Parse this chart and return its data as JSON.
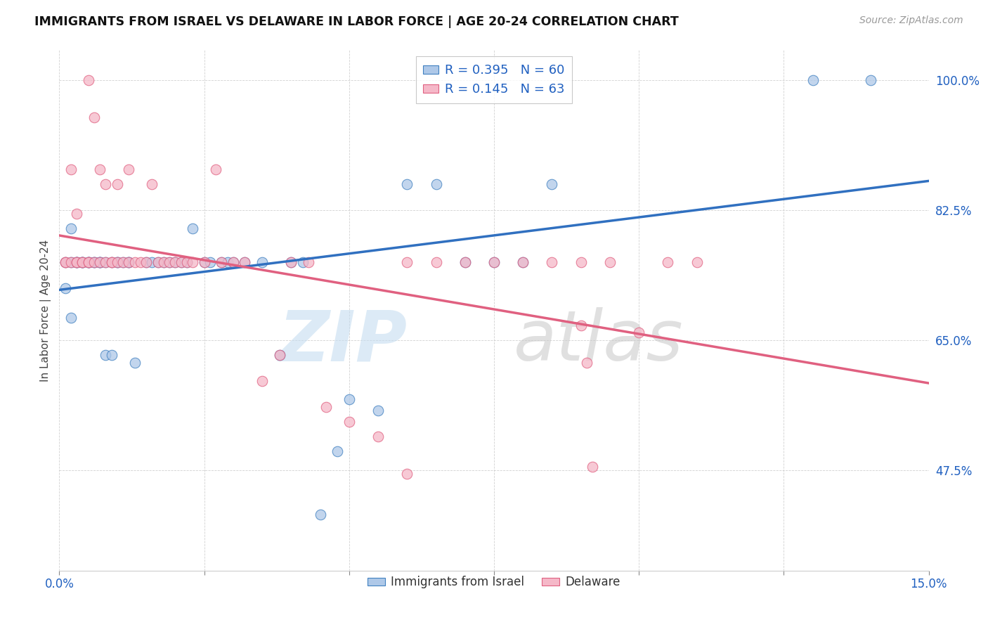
{
  "title": "IMMIGRANTS FROM ISRAEL VS DELAWARE IN LABOR FORCE | AGE 20-24 CORRELATION CHART",
  "source": "Source: ZipAtlas.com",
  "ylabel": "In Labor Force | Age 20-24",
  "xlim": [
    0.0,
    0.15
  ],
  "ylim": [
    0.34,
    1.04
  ],
  "ytick_labels": [
    "47.5%",
    "65.0%",
    "82.5%",
    "100.0%"
  ],
  "ytick_positions": [
    0.475,
    0.65,
    0.825,
    1.0
  ],
  "xtick_positions": [
    0.0,
    0.025,
    0.05,
    0.075,
    0.1,
    0.125,
    0.15
  ],
  "watermark_zip": "ZIP",
  "watermark_atlas": "atlas",
  "legend_r1": "R = 0.395",
  "legend_n1": "N = 60",
  "legend_r2": "R = 0.145",
  "legend_n2": "N = 63",
  "blue_fill": "#aec8e8",
  "blue_edge": "#4080c0",
  "pink_fill": "#f5b8c8",
  "pink_edge": "#e06080",
  "blue_line": "#3070c0",
  "pink_line": "#e06080",
  "blue_x": [
    0.001,
    0.001,
    0.002,
    0.002,
    0.002,
    0.003,
    0.003,
    0.003,
    0.004,
    0.004,
    0.004,
    0.005,
    0.005,
    0.005,
    0.006,
    0.006,
    0.007,
    0.007,
    0.007,
    0.008,
    0.008,
    0.009,
    0.009,
    0.01,
    0.01,
    0.011,
    0.012,
    0.012,
    0.013,
    0.015,
    0.016,
    0.017,
    0.018,
    0.019,
    0.02,
    0.021,
    0.022,
    0.023,
    0.025,
    0.026,
    0.028,
    0.029,
    0.03,
    0.032,
    0.035,
    0.038,
    0.04,
    0.042,
    0.045,
    0.048,
    0.05,
    0.055,
    0.06,
    0.065,
    0.07,
    0.075,
    0.08,
    0.085,
    0.13,
    0.14
  ],
  "blue_y": [
    0.755,
    0.72,
    0.755,
    0.8,
    0.68,
    0.755,
    0.755,
    0.755,
    0.755,
    0.755,
    0.755,
    0.755,
    0.755,
    0.755,
    0.755,
    0.755,
    0.755,
    0.755,
    0.755,
    0.63,
    0.755,
    0.755,
    0.63,
    0.755,
    0.755,
    0.755,
    0.755,
    0.755,
    0.62,
    0.755,
    0.755,
    0.755,
    0.755,
    0.755,
    0.755,
    0.755,
    0.755,
    0.8,
    0.755,
    0.755,
    0.755,
    0.755,
    0.755,
    0.755,
    0.755,
    0.63,
    0.755,
    0.755,
    0.415,
    0.5,
    0.57,
    0.555,
    0.86,
    0.86,
    0.755,
    0.755,
    0.755,
    0.86,
    1.0,
    1.0
  ],
  "pink_x": [
    0.001,
    0.001,
    0.002,
    0.002,
    0.003,
    0.003,
    0.003,
    0.004,
    0.004,
    0.005,
    0.005,
    0.005,
    0.006,
    0.006,
    0.007,
    0.007,
    0.008,
    0.008,
    0.009,
    0.009,
    0.01,
    0.01,
    0.011,
    0.012,
    0.012,
    0.013,
    0.014,
    0.015,
    0.016,
    0.017,
    0.018,
    0.019,
    0.02,
    0.021,
    0.022,
    0.023,
    0.025,
    0.027,
    0.028,
    0.03,
    0.032,
    0.035,
    0.038,
    0.04,
    0.043,
    0.046,
    0.05,
    0.055,
    0.06,
    0.065,
    0.07,
    0.075,
    0.08,
    0.085,
    0.09,
    0.095,
    0.1,
    0.105,
    0.11,
    0.09,
    0.091,
    0.092,
    0.06
  ],
  "pink_y": [
    0.755,
    0.755,
    0.755,
    0.88,
    0.755,
    0.755,
    0.82,
    0.755,
    0.755,
    1.0,
    0.755,
    0.755,
    0.755,
    0.95,
    0.755,
    0.88,
    0.755,
    0.86,
    0.755,
    0.755,
    0.755,
    0.86,
    0.755,
    0.88,
    0.755,
    0.755,
    0.755,
    0.755,
    0.86,
    0.755,
    0.755,
    0.755,
    0.755,
    0.755,
    0.755,
    0.755,
    0.755,
    0.88,
    0.755,
    0.755,
    0.755,
    0.595,
    0.63,
    0.755,
    0.755,
    0.56,
    0.54,
    0.52,
    0.755,
    0.755,
    0.755,
    0.755,
    0.755,
    0.755,
    0.755,
    0.755,
    0.66,
    0.755,
    0.755,
    0.67,
    0.62,
    0.48,
    0.47
  ]
}
